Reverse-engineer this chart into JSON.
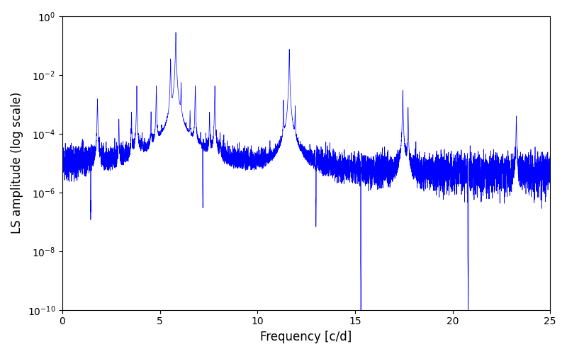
{
  "title": "",
  "xlabel": "Frequency [c/d]",
  "ylabel": "LS amplitude (log scale)",
  "line_color": "#0000ff",
  "xlim": [
    0,
    25
  ],
  "ylim": [
    1e-10,
    1.0
  ],
  "freq_min": 0.0,
  "freq_max": 25.0,
  "n_points": 8000,
  "seed": 137,
  "background_color": "#ffffff",
  "figsize": [
    8.0,
    5.0
  ],
  "dpi": 100
}
